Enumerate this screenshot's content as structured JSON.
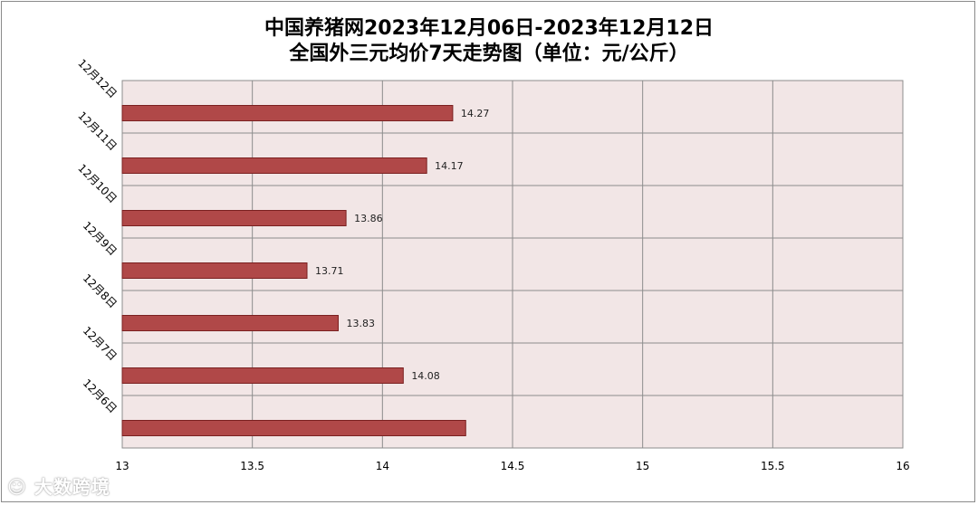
{
  "chart_data": {
    "type": "bar",
    "orientation": "horizontal",
    "title": "中国养猪网2023年12月06日-2023年12月12日",
    "subtitle": "全国外三元均价7天走势图（单位：元/公斤）",
    "categories": [
      "12月12日",
      "12月11日",
      "12月10日",
      "12月9日",
      "12月8日",
      "12月7日",
      "12月6日"
    ],
    "values": [
      14.27,
      14.17,
      13.86,
      13.71,
      13.83,
      14.08,
      14.32
    ],
    "data_labels": [
      "14.27",
      "14.17",
      "13.86",
      "13.71",
      "13.83",
      "14.08",
      ""
    ],
    "xlim": [
      13,
      16
    ],
    "x_ticks": [
      "13",
      "13.5",
      "14",
      "14.5",
      "15",
      "15.5",
      "16"
    ],
    "grid": true,
    "legend": "none",
    "colors": {
      "bar": "#b04848",
      "bar_border": "#7a2020",
      "plot_bg": "#f2e6e6",
      "grid": "#8c8c8c"
    }
  },
  "watermark": "大数跨境"
}
